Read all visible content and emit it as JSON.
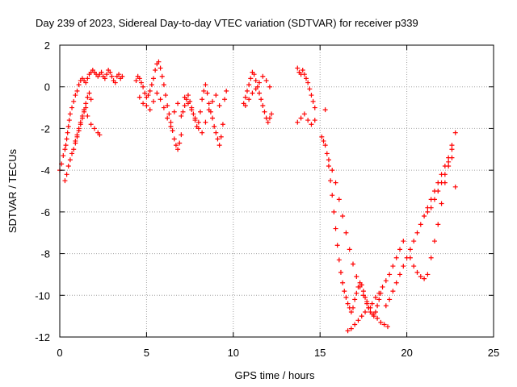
{
  "chart_data": {
    "type": "scatter",
    "title": "Day 239 of 2023, Sidereal Day-to-day VTEC variation (SDTVAR) for receiver p339",
    "xlabel": "GPS time / hours",
    "ylabel": "SDTVAR / TECUs",
    "xlim": [
      0,
      25
    ],
    "ylim": [
      -12,
      2
    ],
    "xticks": [
      0,
      5,
      10,
      15,
      20,
      25
    ],
    "xtick_labels": [
      "0",
      "5",
      "10",
      "15",
      "20",
      "25"
    ],
    "yticks": [
      -12,
      -10,
      -8,
      -6,
      -4,
      -2,
      0,
      2
    ],
    "ytick_labels": [
      "-12",
      "-10",
      "-8",
      "-6",
      "-4",
      "-2",
      "0",
      "2"
    ],
    "grid": true,
    "marker": "plus",
    "color": "#ff0000",
    "series": [
      {
        "name": "SDTVAR",
        "x": [
          0.0,
          0.1,
          0.2,
          0.3,
          0.35,
          0.4,
          0.45,
          0.5,
          0.55,
          0.6,
          0.7,
          0.8,
          0.9,
          1.0,
          1.1,
          1.2,
          1.3,
          1.4,
          1.5,
          1.6,
          1.7,
          1.8,
          1.9,
          2.0,
          2.1,
          2.2,
          2.3,
          2.4,
          2.5,
          2.6,
          2.7,
          2.8,
          2.9,
          3.0,
          3.1,
          3.2,
          3.3,
          3.4,
          3.5,
          3.6,
          0.3,
          0.4,
          0.5,
          0.6,
          0.7,
          0.8,
          0.9,
          1.0,
          1.1,
          1.2,
          1.3,
          1.4,
          1.5,
          1.6,
          1.8,
          2.0,
          2.2,
          2.3,
          0.9,
          1.0,
          1.1,
          1.2,
          1.3,
          1.4,
          1.5,
          1.6,
          1.7,
          1.8,
          4.4,
          4.5,
          4.6,
          4.7,
          4.8,
          4.9,
          5.0,
          5.1,
          5.2,
          5.3,
          5.4,
          5.5,
          5.6,
          5.7,
          5.8,
          5.9,
          6.0,
          6.1,
          6.2,
          6.3,
          6.4,
          6.5,
          6.6,
          6.7,
          6.8,
          6.9,
          7.0,
          4.6,
          4.8,
          5.0,
          5.2,
          5.4,
          5.6,
          5.8,
          6.0,
          6.2,
          6.4,
          6.6,
          6.8,
          7.0,
          7.1,
          7.2,
          7.3,
          7.4,
          7.5,
          7.6,
          7.7,
          7.8,
          7.9,
          8.0,
          8.1,
          8.2,
          8.3,
          8.4,
          8.5,
          8.6,
          8.7,
          8.8,
          8.9,
          9.0,
          9.1,
          9.2,
          9.3,
          9.4,
          9.5,
          9.6,
          7.2,
          7.4,
          7.6,
          7.8,
          8.0,
          8.2,
          8.4,
          8.6,
          8.8,
          9.0,
          9.2,
          10.6,
          10.7,
          10.8,
          10.9,
          11.0,
          11.1,
          11.2,
          11.3,
          11.4,
          11.5,
          11.6,
          11.7,
          11.8,
          11.9,
          12.0,
          12.1,
          12.2,
          10.7,
          10.9,
          11.1,
          11.3,
          11.5,
          11.7,
          11.9,
          12.1,
          13.7,
          13.8,
          13.9,
          14.0,
          14.1,
          14.2,
          14.3,
          14.4,
          14.5,
          14.6,
          14.7,
          13.7,
          13.9,
          14.1,
          14.3,
          14.5,
          14.7,
          15.3,
          15.1,
          15.2,
          15.3,
          15.4,
          15.5,
          15.6,
          15.7,
          15.8,
          15.9,
          16.0,
          16.1,
          16.2,
          16.3,
          16.4,
          16.5,
          16.6,
          16.7,
          16.8,
          16.9,
          17.0,
          17.1,
          17.2,
          17.3,
          17.4,
          17.5,
          17.6,
          17.7,
          17.8,
          17.9,
          18.0,
          18.1,
          18.2,
          18.3,
          18.4,
          18.5,
          15.5,
          15.7,
          15.9,
          16.1,
          16.3,
          16.5,
          16.7,
          16.9,
          17.1,
          17.3,
          17.5,
          17.7,
          17.9,
          18.1,
          18.3,
          18.5,
          18.7,
          18.9,
          16.6,
          16.8,
          17.0,
          17.2,
          17.4,
          17.6,
          17.8,
          18.0,
          18.2,
          18.4,
          18.6,
          18.8,
          19.0,
          19.2,
          19.4,
          19.6,
          19.8,
          18.8,
          19.0,
          19.2,
          19.4,
          19.6,
          19.8,
          20.0,
          20.2,
          20.4,
          20.6,
          20.8,
          21.0,
          21.2,
          21.4,
          21.6,
          21.8,
          22.0,
          22.2,
          22.4,
          22.6,
          20.2,
          20.4,
          20.6,
          20.8,
          21.0,
          21.2,
          21.4,
          21.6,
          21.8,
          22.0,
          22.2,
          22.4,
          22.6,
          22.8,
          21.2,
          21.4,
          21.6,
          21.8,
          22.0,
          22.2,
          22.4,
          22.6,
          22.8
        ],
        "y": [
          -4.0,
          -3.7,
          -3.3,
          -3.0,
          -2.8,
          -2.5,
          -2.2,
          -1.9,
          -1.6,
          -1.3,
          -1.0,
          -0.7,
          -0.4,
          -0.2,
          0.1,
          0.3,
          0.4,
          0.3,
          0.2,
          0.4,
          0.6,
          0.7,
          0.8,
          0.7,
          0.6,
          0.5,
          0.6,
          0.7,
          0.5,
          0.4,
          0.6,
          0.8,
          0.7,
          0.5,
          0.3,
          0.2,
          0.5,
          0.6,
          0.4,
          0.5,
          -4.5,
          -4.2,
          -3.8,
          -3.5,
          -3.2,
          -3.0,
          -2.7,
          -2.4,
          -2.1,
          -1.8,
          -1.5,
          -1.2,
          -1.0,
          -1.4,
          -1.8,
          -2.0,
          -2.2,
          -2.3,
          -2.6,
          -2.3,
          -2.0,
          -1.7,
          -1.4,
          -1.1,
          -0.8,
          -0.5,
          -0.3,
          -0.6,
          0.3,
          0.5,
          0.4,
          0.2,
          0.0,
          -0.3,
          -0.5,
          -0.4,
          -0.2,
          0.1,
          0.4,
          0.8,
          1.1,
          1.2,
          0.9,
          0.5,
          0.1,
          -0.4,
          -0.9,
          -1.3,
          -1.7,
          -2.1,
          -2.5,
          -2.8,
          -3.0,
          -2.7,
          -2.3,
          -0.5,
          -0.8,
          -0.9,
          -1.1,
          -0.7,
          -0.3,
          -0.6,
          -1.0,
          -1.5,
          -1.9,
          -1.2,
          -0.8,
          -1.4,
          -1.2,
          -0.9,
          -0.6,
          -0.4,
          -0.7,
          -1.0,
          -1.3,
          -1.6,
          -1.9,
          -1.7,
          -1.2,
          -0.6,
          -0.2,
          0.1,
          -0.3,
          -0.8,
          -1.2,
          -1.5,
          -1.9,
          -2.2,
          -2.5,
          -2.8,
          -2.4,
          -1.8,
          -0.6,
          -0.2,
          -0.5,
          -0.8,
          -1.1,
          -1.5,
          -2.0,
          -2.2,
          -1.7,
          -1.1,
          -0.7,
          -0.4,
          -0.9,
          -0.8,
          -0.5,
          -0.2,
          0.1,
          0.4,
          0.7,
          0.6,
          0.3,
          0.0,
          -0.3,
          -0.6,
          -0.9,
          -1.2,
          -1.5,
          -1.7,
          -1.5,
          -1.3,
          -0.9,
          -0.6,
          -0.3,
          -0.1,
          0.2,
          0.5,
          0.3,
          0.0,
          0.9,
          0.7,
          0.6,
          0.8,
          0.6,
          0.4,
          0.2,
          -0.1,
          -0.4,
          -0.7,
          -1.0,
          -1.7,
          -1.5,
          -1.3,
          -1.6,
          -1.8,
          -1.6,
          -1.1,
          -2.4,
          -2.6,
          -2.8,
          -3.2,
          -3.8,
          -4.5,
          -5.2,
          -6.0,
          -6.8,
          -7.6,
          -8.3,
          -8.9,
          -9.4,
          -9.8,
          -10.1,
          -10.4,
          -10.6,
          -10.8,
          -10.6,
          -10.2,
          -9.9,
          -9.6,
          -9.4,
          -9.5,
          -9.8,
          -10.1,
          -10.4,
          -10.6,
          -10.8,
          -10.9,
          -11.0,
          -10.8,
          -10.5,
          -10.2,
          -9.9,
          -3.5,
          -4.0,
          -4.6,
          -5.4,
          -6.2,
          -7.0,
          -7.8,
          -8.5,
          -9.1,
          -9.6,
          -10.0,
          -10.3,
          -10.6,
          -10.9,
          -11.1,
          -11.3,
          -11.4,
          -11.5,
          -11.7,
          -11.6,
          -11.4,
          -11.2,
          -11.0,
          -10.8,
          -10.6,
          -10.4,
          -10.1,
          -9.9,
          -9.6,
          -9.3,
          -9.0,
          -8.6,
          -8.2,
          -7.8,
          -7.4,
          -10.5,
          -10.2,
          -9.8,
          -9.4,
          -9.0,
          -8.6,
          -8.2,
          -7.8,
          -7.4,
          -7.0,
          -6.6,
          -6.2,
          -5.8,
          -5.4,
          -5.0,
          -4.6,
          -4.2,
          -3.8,
          -3.4,
          -3.0,
          -8.2,
          -8.6,
          -8.9,
          -9.1,
          -9.2,
          -9.0,
          -8.2,
          -7.4,
          -6.6,
          -5.6,
          -4.6,
          -3.6,
          -2.8,
          -2.2,
          -6.0,
          -5.8,
          -5.4,
          -5.0,
          -4.6,
          -4.2,
          -3.8,
          -3.4,
          -4.8
        ]
      }
    ]
  }
}
